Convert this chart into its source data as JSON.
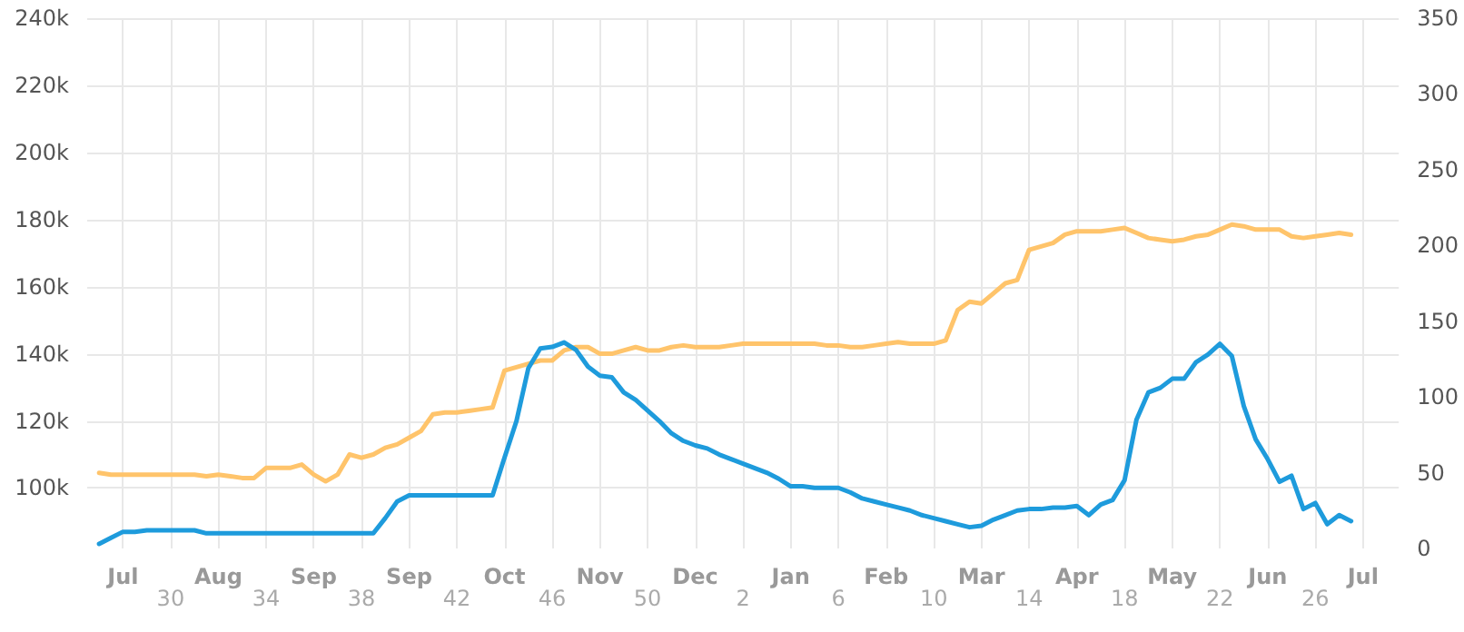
{
  "chart_data": {
    "type": "line",
    "categories": [
      null,
      null,
      null,
      "Jul",
      null,
      null,
      null,
      "30",
      null,
      null,
      null,
      "Aug",
      null,
      null,
      null,
      "34",
      null,
      null,
      null,
      "Sep",
      null,
      null,
      null,
      "38",
      null,
      null,
      null,
      "Sep",
      null,
      null,
      null,
      "42",
      null,
      null,
      null,
      "Oct",
      null,
      null,
      null,
      "46",
      null,
      null,
      null,
      "Nov",
      null,
      null,
      null,
      "50",
      null,
      null,
      null,
      "Dec",
      null,
      null,
      null,
      "2",
      null,
      null,
      null,
      "Jan",
      null,
      null,
      null,
      "6",
      null,
      null,
      null,
      "Feb",
      null,
      null,
      null,
      "10",
      null,
      null,
      null,
      "Mar",
      null,
      null,
      null,
      "14",
      null,
      null,
      null,
      "Apr",
      null,
      null,
      null,
      "18",
      null,
      null,
      null,
      "May",
      null,
      null,
      null,
      "22",
      null,
      null,
      null,
      "Jun",
      null,
      null,
      null,
      "26",
      null,
      null,
      null,
      "Jul",
      null,
      null,
      null
    ],
    "ylim": [
      82000,
      240000
    ],
    "yticks": [
      {
        "value": 100000,
        "label": "100k"
      },
      {
        "value": 120000,
        "label": "120k"
      },
      {
        "value": 140000,
        "label": "140k"
      },
      {
        "value": 160000,
        "label": "160k"
      },
      {
        "value": 180000,
        "label": "180k"
      },
      {
        "value": 200000,
        "label": "200k"
      },
      {
        "value": 220000,
        "label": "220k"
      },
      {
        "value": 240000,
        "label": "240k"
      }
    ],
    "y2lim": [
      0,
      350
    ],
    "y2ticks": [
      0,
      50,
      100,
      150,
      200,
      250,
      300,
      350
    ],
    "grid": true,
    "marker": "none",
    "line_style": "solid",
    "series": [
      {
        "color": "#ffc46b",
        "values": [
          null,
          104500,
          104000,
          104000,
          104000,
          104000,
          104000,
          104000,
          104000,
          104000,
          103500,
          104000,
          103500,
          103000,
          103000,
          106000,
          106000,
          106000,
          107000,
          104000,
          102000,
          104000,
          110000,
          109000,
          110000,
          112000,
          113000,
          115000,
          117000,
          122000,
          122500,
          122500,
          123000,
          123500,
          124000,
          135000,
          136000,
          137000,
          138000,
          138000,
          141000,
          142000,
          142000,
          140000,
          140000,
          141000,
          142000,
          141000,
          141000,
          142000,
          142500,
          142000,
          142000,
          142000,
          142500,
          143000,
          143000,
          143000,
          143000,
          143000,
          143000,
          143000,
          142500,
          142500,
          142000,
          142000,
          142500,
          143000,
          143500,
          143000,
          143000,
          143000,
          144000,
          153000,
          155500,
          155000,
          158000,
          161000,
          162000,
          171000,
          172000,
          173000,
          175500,
          176500,
          176500,
          176500,
          177000,
          177500,
          176000,
          174500,
          174000,
          173500,
          174000,
          175000,
          175500,
          177000,
          178500,
          178000,
          177000,
          177000,
          177000,
          175000,
          174500,
          175000,
          175500,
          176000,
          175500,
          null,
          null,
          null,
          null
        ]
      },
      {
        "color": "#1e9bdc",
        "axis": "y2",
        "values": [
          null,
          3,
          7,
          11,
          11,
          12,
          12,
          12,
          12,
          12,
          10,
          10,
          10,
          10,
          10,
          10,
          10,
          10,
          10,
          10,
          10,
          10,
          10,
          10,
          10,
          20,
          31,
          35,
          35,
          35,
          35,
          35,
          35,
          35,
          35,
          60,
          84,
          119,
          132,
          133,
          136,
          131,
          120,
          114,
          113,
          103,
          98,
          91,
          84,
          76,
          71,
          68,
          66,
          62,
          59,
          56,
          53,
          50,
          46,
          41,
          41,
          40,
          40,
          40,
          37,
          33,
          31,
          29,
          27,
          25,
          22,
          20,
          18,
          16,
          14,
          15,
          19,
          22,
          25,
          26,
          26,
          27,
          27,
          28,
          22,
          29,
          32,
          45,
          85,
          103,
          106,
          112,
          112,
          123,
          128,
          135,
          127,
          94,
          72,
          59,
          44,
          48,
          26,
          30,
          16,
          22,
          18,
          null,
          null,
          null,
          null
        ]
      }
    ]
  }
}
